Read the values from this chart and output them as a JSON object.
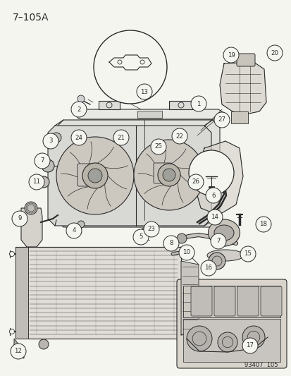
{
  "title": "7–105A",
  "diagram_id": "93407  105",
  "bg_color": "#f5f5f0",
  "line_color": "#2a2a2a",
  "label_color": "#000000",
  "title_fontsize": 10,
  "label_fontsize": 6.5,
  "fig_width": 4.14,
  "fig_height": 5.33,
  "dpi": 100,
  "label_r": 0.018,
  "label_fs": 6.0
}
